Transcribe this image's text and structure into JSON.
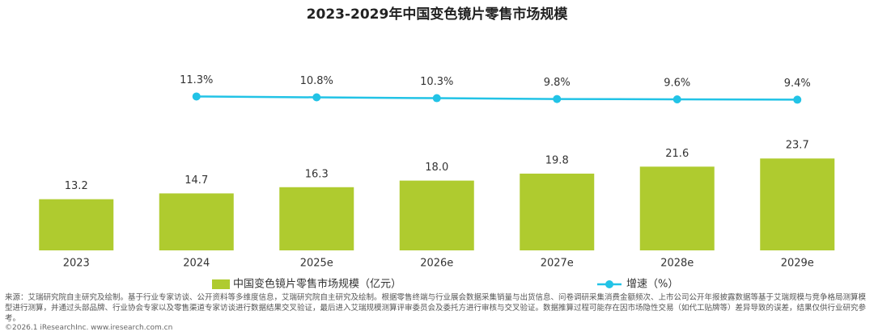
{
  "chart_data": {
    "type": "bar_line",
    "title": "2023-2029年中国变色镜片零售市场规模",
    "categories": [
      "2023",
      "2024",
      "2025e",
      "2026e",
      "2027e",
      "2028e",
      "2029e"
    ],
    "series": [
      {
        "name": "中国变色镜片零售市场规模（亿元）",
        "type": "bar",
        "color": "#afcb2f",
        "values": [
          13.2,
          14.7,
          16.3,
          18.0,
          19.8,
          21.6,
          23.7
        ],
        "value_labels": [
          "13.2",
          "14.7",
          "16.3",
          "18.0",
          "19.8",
          "21.6",
          "23.7"
        ]
      },
      {
        "name": "增速（%）",
        "type": "line",
        "axis": "y2",
        "color": "#22c3e6",
        "values": [
          null,
          11.3,
          10.8,
          10.3,
          9.8,
          9.6,
          9.4
        ],
        "value_labels": [
          null,
          "11.3%",
          "10.8%",
          "10.3%",
          "9.8%",
          "9.6%",
          "9.4%"
        ]
      }
    ],
    "ylim": [
      0,
      50
    ],
    "y2lim": [
      -80,
      35
    ],
    "grid": false,
    "legend": "bottom",
    "source": "来源：艾瑞研究院自主研究及绘制。基于行业专家访谈、公开资料等多维度信息，艾瑞研究院自主研究及绘制。根据零售终端与行业展会数据采集销量与出货信息、问卷调研采集消费金额频次、上市公司公开年报披露数据等基于艾瑞规模与竞争格局测算模型进行测算，并通过头部品牌、行业协会专家以及零售渠道专家访谈进行数据结果交叉验证，最后进入艾瑞规模测算评审委员会及委托方进行审核与交叉验证。数据推算过程可能存在因市场隐性交易（如代工贴牌等）差异导致的误差，结果仅供行业研究参考。",
    "copyright": "©2026.1 iResearchInc. www.iresearch.com.cn"
  }
}
